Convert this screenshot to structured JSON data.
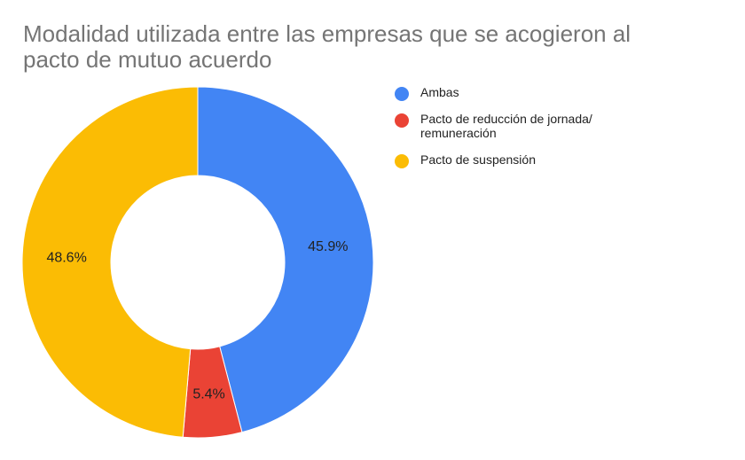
{
  "chart_data": {
    "type": "pie",
    "variant": "donut",
    "title_lines": [
      "Modalidad utilizada entre las empresas que se acogieron al",
      "pacto de mutuo acuerdo"
    ],
    "legend_position": "right",
    "slices": [
      {
        "name": "Ambas",
        "legend_lines": [
          "Ambas"
        ],
        "value": 45.9,
        "label": "45.9%",
        "color": "#4285F4"
      },
      {
        "name": "Pacto de reducción de jornada/ remuneración",
        "legend_lines": [
          "Pacto de reducción de jornada/",
          "remuneración"
        ],
        "value": 5.4,
        "label": "5.4%",
        "color": "#EA4335"
      },
      {
        "name": "Pacto de suspensión",
        "legend_lines": [
          "Pacto de suspensión"
        ],
        "value": 48.6,
        "label": "48.6%",
        "color": "#FBBC04"
      }
    ]
  }
}
